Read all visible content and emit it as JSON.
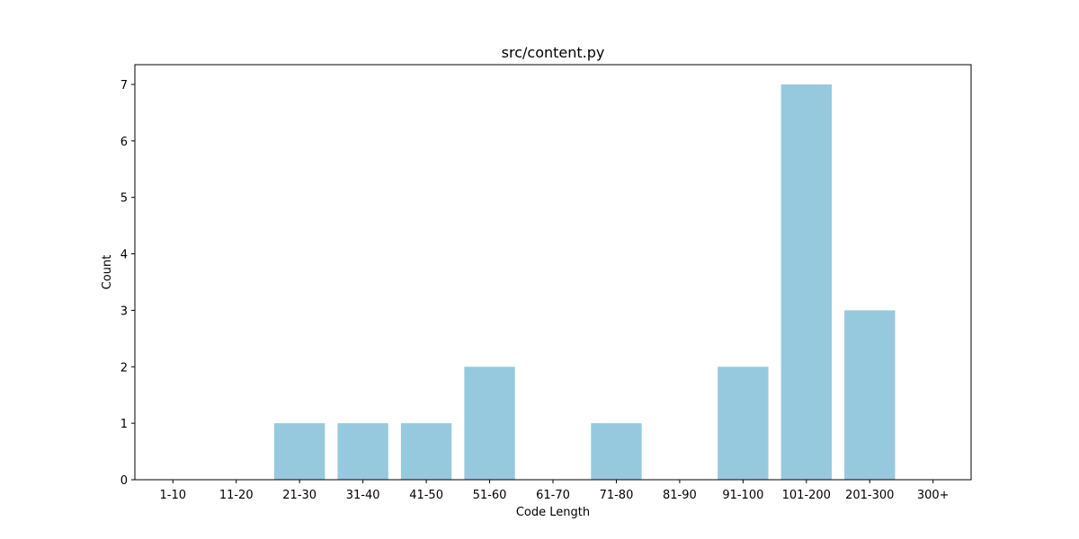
{
  "chart_data": {
    "type": "bar",
    "title": "src/content.py",
    "xlabel": "Code Length",
    "ylabel": "Count",
    "categories": [
      "1-10",
      "11-20",
      "21-30",
      "31-40",
      "41-50",
      "51-60",
      "61-70",
      "71-80",
      "81-90",
      "91-100",
      "101-200",
      "201-300",
      "300+"
    ],
    "values": [
      0,
      0,
      1,
      1,
      1,
      2,
      0,
      1,
      0,
      2,
      7,
      3,
      0
    ],
    "yticks": [
      0,
      1,
      2,
      3,
      4,
      5,
      6,
      7
    ],
    "ylim": [
      0,
      7.35
    ],
    "bar_color": "#96c9dd",
    "grid": false,
    "legend": "none"
  }
}
